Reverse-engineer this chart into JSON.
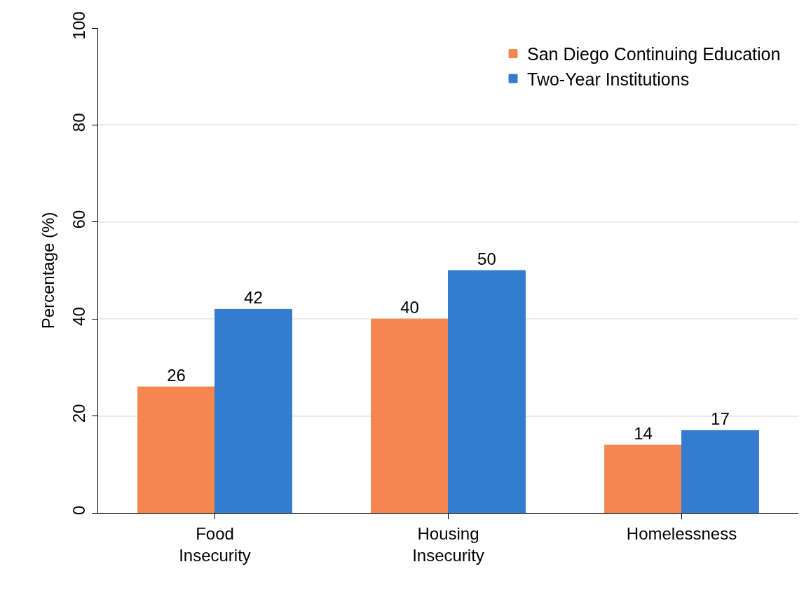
{
  "chart_data": {
    "type": "bar",
    "ylabel": "Percentage (%)",
    "categories": [
      "Food\nInsecurity",
      "Housing\nInsecurity",
      "Homelessness"
    ],
    "series": [
      {
        "name": "San Diego Continuing Education",
        "color": "#f4874f",
        "values": [
          26,
          40,
          14
        ]
      },
      {
        "name": "Two-Year Institutions",
        "color": "#337ccf",
        "values": [
          42,
          50,
          17
        ]
      }
    ],
    "ylim": [
      0,
      100
    ],
    "yticks": [
      0,
      20,
      40,
      60,
      80,
      100
    ],
    "grid": "y",
    "legend": "top right",
    "data_labels": true
  }
}
